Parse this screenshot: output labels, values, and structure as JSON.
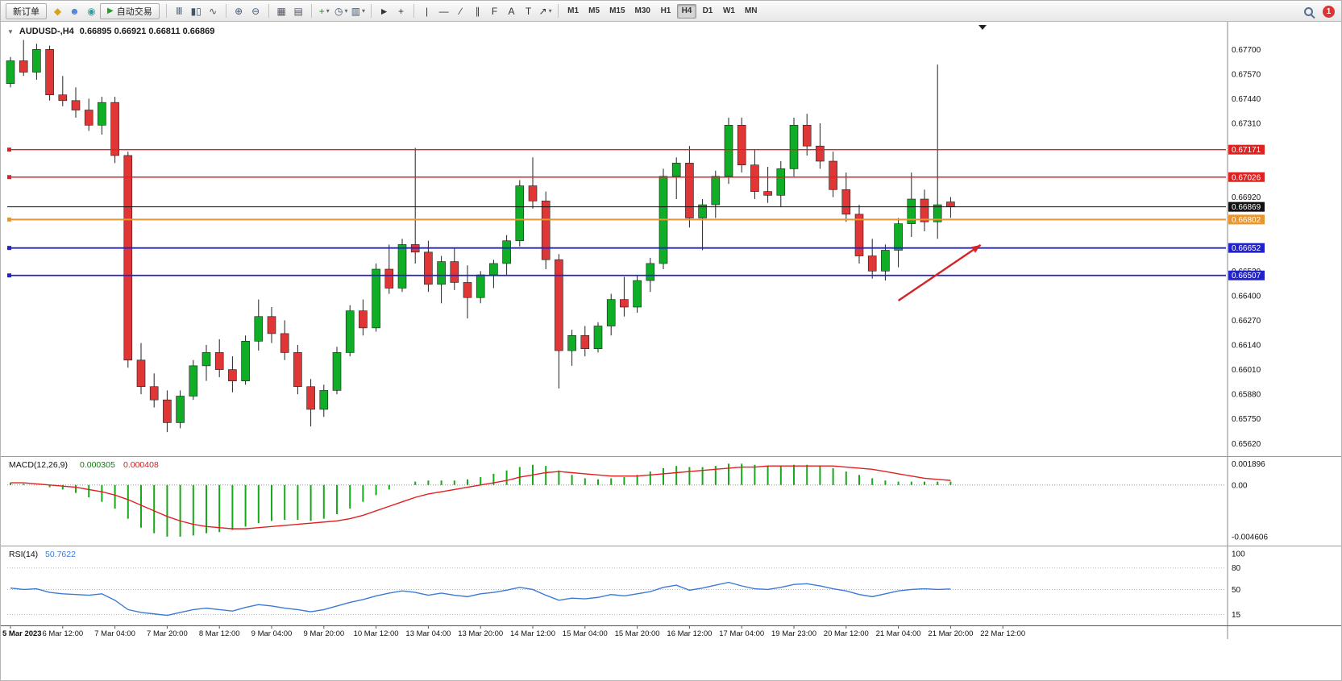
{
  "toolbar": {
    "new_order_label": "新订单",
    "auto_trading_label": "自动交易",
    "auto_play_glyph": "▶",
    "timeframes": [
      "M1",
      "M5",
      "M15",
      "M30",
      "H1",
      "H4",
      "D1",
      "W1",
      "MN"
    ],
    "active_timeframe": "H4",
    "notification_count": "1",
    "icons_left": [
      {
        "name": "mql-market-icon",
        "glyph": "◆",
        "color": "#d6a517"
      },
      {
        "name": "profile-icon",
        "glyph": "☻",
        "color": "#4a7fd4"
      },
      {
        "name": "community-icon",
        "glyph": "◉",
        "color": "#3a9e9e"
      }
    ],
    "icon_groups": [
      [
        {
          "name": "bars-chart-icon",
          "glyph": "Ⅲ",
          "color": "#445566"
        },
        {
          "name": "candles-chart-icon",
          "glyph": "▮▯",
          "color": "#445566"
        },
        {
          "name": "line-chart-icon",
          "glyph": "∿",
          "color": "#445566"
        }
      ],
      [
        {
          "name": "zoom-in-icon",
          "glyph": "⊕",
          "color": "#445577"
        },
        {
          "name": "zoom-out-icon",
          "glyph": "⊖",
          "color": "#445577"
        }
      ],
      [
        {
          "name": "tile-windows-icon",
          "glyph": "▦",
          "color": "#556"
        },
        {
          "name": "cascade-windows-icon",
          "glyph": "▤",
          "color": "#556"
        }
      ],
      [
        {
          "name": "indicators-button",
          "glyph": "+",
          "color": "#2a8a2a",
          "dropdown": true
        },
        {
          "name": "periods-button",
          "glyph": "◷",
          "color": "#445566",
          "dropdown": true
        },
        {
          "name": "templates-button",
          "glyph": "▥",
          "color": "#445566",
          "dropdown": true
        }
      ],
      [
        {
          "name": "cursor-icon",
          "glyph": "►",
          "color": "#333"
        },
        {
          "name": "crosshair-icon",
          "glyph": "+",
          "color": "#333"
        }
      ],
      [
        {
          "name": "vertical-line-icon",
          "glyph": "|",
          "color": "#333"
        },
        {
          "name": "horizontal-line-icon",
          "glyph": "—",
          "color": "#333"
        },
        {
          "name": "trendline-icon",
          "glyph": "∕",
          "color": "#333"
        },
        {
          "name": "channel-icon",
          "glyph": "∥",
          "color": "#333"
        },
        {
          "name": "fibonacci-icon",
          "glyph": "F",
          "color": "#333"
        },
        {
          "name": "text-tool-icon",
          "glyph": "A",
          "color": "#333"
        },
        {
          "name": "label-tool-icon",
          "glyph": "T",
          "color": "#333"
        },
        {
          "name": "arrows-tool-icon",
          "glyph": "↗",
          "color": "#333",
          "dropdown": true
        }
      ]
    ]
  },
  "chart_header": {
    "collapse_glyph": "▼",
    "symbol_title": "AUDUSD-,H4",
    "ohlc_values": "0.66895 0.66921 0.66811 0.66869"
  },
  "chart_data": [
    {
      "type": "candlestick",
      "symbol": "AUDUSD-",
      "timeframe": "H4",
      "ohlc_display": [
        "0.66895",
        "0.66921",
        "0.66811",
        "0.66869"
      ],
      "ylim": [
        0.65553,
        0.67846
      ],
      "up_color": "#0fae26",
      "down_color": "#e03636",
      "wick_color": "#222222",
      "price_ticks": [
        0.677,
        0.6757,
        0.6744,
        0.6731,
        0.6692,
        0.6653,
        0.664,
        0.6627,
        0.6614,
        0.6601,
        0.6588,
        0.6575,
        0.6562
      ],
      "levels": [
        {
          "price": 0.67171,
          "color": "#dd2222",
          "width": 1.4
        },
        {
          "price": 0.67026,
          "color": "#dd2222",
          "width": 1.4
        },
        {
          "price": 0.66802,
          "color": "#e8962d",
          "width": 2
        },
        {
          "price": 0.66652,
          "color": "#2222cc",
          "width": 1.8
        },
        {
          "price": 0.66507,
          "color": "#2222cc",
          "width": 1.8
        }
      ],
      "current_price": {
        "price": 0.66869,
        "color": "#111111"
      },
      "label_every": 4,
      "time_labels": [
        "5 Mar 2023",
        "6 Mar 12:00",
        "7 Mar 04:00",
        "7 Mar 20:00",
        "8 Mar 12:00",
        "9 Mar 04:00",
        "9 Mar 20:00",
        "10 Mar 12:00",
        "13 Mar 04:00",
        "13 Mar 20:00",
        "14 Mar 12:00",
        "15 Mar 04:00",
        "15 Mar 20:00",
        "16 Mar 12:00",
        "17 Mar 04:00",
        "19 Mar 23:00",
        "20 Mar 12:00",
        "21 Mar 04:00",
        "21 Mar 20:00",
        "22 Mar 12:00"
      ],
      "candles": [
        [
          0.6752,
          0.6766,
          0.675,
          0.6764
        ],
        [
          0.6764,
          0.6775,
          0.6756,
          0.6758
        ],
        [
          0.6758,
          0.6773,
          0.6754,
          0.677
        ],
        [
          0.677,
          0.6772,
          0.6743,
          0.6746
        ],
        [
          0.6746,
          0.6756,
          0.674,
          0.6743
        ],
        [
          0.6743,
          0.675,
          0.6734,
          0.6738
        ],
        [
          0.6738,
          0.6744,
          0.6727,
          0.673
        ],
        [
          0.673,
          0.6745,
          0.6725,
          0.6742
        ],
        [
          0.6742,
          0.6745,
          0.671,
          0.6714
        ],
        [
          0.6714,
          0.6716,
          0.6602,
          0.6606
        ],
        [
          0.6606,
          0.6615,
          0.6588,
          0.6592
        ],
        [
          0.6592,
          0.6599,
          0.6581,
          0.6585
        ],
        [
          0.6585,
          0.659,
          0.6568,
          0.6573
        ],
        [
          0.6573,
          0.659,
          0.657,
          0.6587
        ],
        [
          0.6587,
          0.6606,
          0.6585,
          0.6603
        ],
        [
          0.6603,
          0.6614,
          0.6595,
          0.661
        ],
        [
          0.661,
          0.6617,
          0.6597,
          0.6601
        ],
        [
          0.6601,
          0.6608,
          0.6589,
          0.6595
        ],
        [
          0.6595,
          0.6619,
          0.6593,
          0.6616
        ],
        [
          0.6616,
          0.6638,
          0.6611,
          0.6629
        ],
        [
          0.6629,
          0.6634,
          0.6615,
          0.662
        ],
        [
          0.662,
          0.6627,
          0.6606,
          0.661
        ],
        [
          0.661,
          0.6614,
          0.6588,
          0.6592
        ],
        [
          0.6592,
          0.6596,
          0.6571,
          0.658
        ],
        [
          0.658,
          0.6593,
          0.6576,
          0.659
        ],
        [
          0.659,
          0.6613,
          0.6588,
          0.661
        ],
        [
          0.661,
          0.6635,
          0.6608,
          0.6632
        ],
        [
          0.6632,
          0.6638,
          0.6619,
          0.6623
        ],
        [
          0.6623,
          0.6657,
          0.6621,
          0.6654
        ],
        [
          0.6654,
          0.6667,
          0.6641,
          0.6644
        ],
        [
          0.6644,
          0.667,
          0.6642,
          0.6667
        ],
        [
          0.6667,
          0.6718,
          0.6657,
          0.6663
        ],
        [
          0.6663,
          0.6669,
          0.6642,
          0.6646
        ],
        [
          0.6646,
          0.6661,
          0.6636,
          0.6658
        ],
        [
          0.6658,
          0.6665,
          0.6643,
          0.6647
        ],
        [
          0.6647,
          0.6656,
          0.6628,
          0.6639
        ],
        [
          0.6639,
          0.6653,
          0.6636,
          0.6651
        ],
        [
          0.6651,
          0.6659,
          0.6644,
          0.6657
        ],
        [
          0.6657,
          0.6672,
          0.6651,
          0.6669
        ],
        [
          0.6669,
          0.6701,
          0.6666,
          0.6698
        ],
        [
          0.6698,
          0.6713,
          0.6686,
          0.669
        ],
        [
          0.669,
          0.6695,
          0.6654,
          0.6659
        ],
        [
          0.6659,
          0.6662,
          0.6591,
          0.6611
        ],
        [
          0.6611,
          0.6622,
          0.6603,
          0.6619
        ],
        [
          0.6619,
          0.6624,
          0.6608,
          0.6612
        ],
        [
          0.6612,
          0.6626,
          0.661,
          0.6624
        ],
        [
          0.6624,
          0.6641,
          0.6619,
          0.6638
        ],
        [
          0.6638,
          0.665,
          0.6629,
          0.6634
        ],
        [
          0.6634,
          0.6651,
          0.6631,
          0.6648
        ],
        [
          0.6648,
          0.666,
          0.6642,
          0.6657
        ],
        [
          0.6657,
          0.6707,
          0.6654,
          0.6703
        ],
        [
          0.6703,
          0.6713,
          0.6691,
          0.671
        ],
        [
          0.671,
          0.6719,
          0.6676,
          0.6681
        ],
        [
          0.6681,
          0.6691,
          0.6664,
          0.6688
        ],
        [
          0.6688,
          0.6706,
          0.6681,
          0.6703
        ],
        [
          0.6703,
          0.6734,
          0.6699,
          0.673
        ],
        [
          0.673,
          0.6734,
          0.6705,
          0.6709
        ],
        [
          0.6709,
          0.6717,
          0.6691,
          0.6695
        ],
        [
          0.6695,
          0.6708,
          0.6689,
          0.6693
        ],
        [
          0.6693,
          0.6711,
          0.6687,
          0.6707
        ],
        [
          0.6707,
          0.6734,
          0.6703,
          0.673
        ],
        [
          0.673,
          0.6736,
          0.6714,
          0.6719
        ],
        [
          0.6719,
          0.6731,
          0.6707,
          0.6711
        ],
        [
          0.6711,
          0.6716,
          0.6692,
          0.6696
        ],
        [
          0.6696,
          0.6705,
          0.6679,
          0.6683
        ],
        [
          0.6683,
          0.6688,
          0.6657,
          0.6661
        ],
        [
          0.6661,
          0.667,
          0.6649,
          0.6653
        ],
        [
          0.6653,
          0.6667,
          0.6648,
          0.6664
        ],
        [
          0.6664,
          0.6681,
          0.6655,
          0.6678
        ],
        [
          0.6678,
          0.6705,
          0.6671,
          0.6691
        ],
        [
          0.6691,
          0.6696,
          0.6674,
          0.6679
        ],
        [
          0.6679,
          0.6762,
          0.667,
          0.6688
        ],
        [
          0.66895,
          0.66921,
          0.66811,
          0.66869
        ]
      ]
    },
    {
      "type": "bar",
      "title": "MACD(12,26,9)",
      "main_value": "0.000305",
      "signal_value": "0.000408",
      "ylim": [
        -0.0054,
        0.0025
      ],
      "hist_color": "#18a818",
      "signal_color": "#e02020",
      "axis_labels": [
        {
          "v": 0.001896,
          "label": "0.001896"
        },
        {
          "v": 0,
          "label": "0.00"
        },
        {
          "v": -0.004606,
          "label": "-0.004606"
        }
      ],
      "histogram": [
        0.0002,
        0.0001,
        0.0,
        -0.0002,
        -0.0004,
        -0.0007,
        -0.0011,
        -0.0015,
        -0.0021,
        -0.003,
        -0.0038,
        -0.0043,
        -0.0046,
        -0.0046,
        -0.0045,
        -0.0043,
        -0.0042,
        -0.004,
        -0.0037,
        -0.0034,
        -0.0032,
        -0.0031,
        -0.0031,
        -0.0032,
        -0.003,
        -0.0026,
        -0.0021,
        -0.0015,
        -0.0009,
        -0.0004,
        0.0,
        0.0003,
        0.0004,
        0.0004,
        0.0004,
        0.0005,
        0.0007,
        0.001,
        0.0013,
        0.0016,
        0.0018,
        0.0017,
        0.0013,
        0.0009,
        0.0006,
        0.0005,
        0.0006,
        0.0007,
        0.0009,
        0.0012,
        0.0015,
        0.0017,
        0.0016,
        0.0016,
        0.0017,
        0.0019,
        0.0019,
        0.0018,
        0.0017,
        0.0017,
        0.0018,
        0.0018,
        0.0017,
        0.0015,
        0.0012,
        0.0009,
        0.0006,
        0.0004,
        0.0003,
        0.0003,
        0.0003,
        0.0003,
        0.000305
      ],
      "signal": [
        0.0002,
        0.0002,
        0.0001,
        0.0,
        -0.0001,
        -0.0002,
        -0.0004,
        -0.0006,
        -0.0009,
        -0.0013,
        -0.0018,
        -0.0023,
        -0.0028,
        -0.0032,
        -0.0035,
        -0.0037,
        -0.0038,
        -0.0039,
        -0.0039,
        -0.0038,
        -0.0037,
        -0.0036,
        -0.0035,
        -0.0034,
        -0.0033,
        -0.0032,
        -0.003,
        -0.0027,
        -0.0023,
        -0.0019,
        -0.0015,
        -0.0011,
        -0.0008,
        -0.0006,
        -0.0004,
        -0.0002,
        0.0,
        0.0002,
        0.0004,
        0.0007,
        0.0009,
        0.0011,
        0.0012,
        0.0011,
        0.001,
        0.0009,
        0.0008,
        0.0008,
        0.0008,
        0.0009,
        0.001,
        0.0011,
        0.0012,
        0.0013,
        0.0014,
        0.0015,
        0.0016,
        0.0016,
        0.0017,
        0.0017,
        0.0017,
        0.0017,
        0.0017,
        0.0017,
        0.0016,
        0.0015,
        0.0014,
        0.0012,
        0.001,
        0.0008,
        0.0006,
        0.0005,
        0.000408
      ]
    },
    {
      "type": "line",
      "title": "RSI(14)",
      "value": "50.7622",
      "ylim": [
        0,
        110
      ],
      "line_color": "#3b7bd4",
      "levels": [
        80,
        50,
        15
      ],
      "axis_labels": [
        {
          "v": 100,
          "label": "100"
        },
        {
          "v": 80,
          "label": "80"
        },
        {
          "v": 50,
          "label": "50"
        },
        {
          "v": 15,
          "label": "15"
        }
      ],
      "values": [
        52,
        50,
        51,
        46,
        44,
        43,
        42,
        44,
        35,
        22,
        18,
        16,
        14,
        18,
        22,
        24,
        22,
        20,
        25,
        29,
        27,
        24,
        22,
        19,
        22,
        27,
        32,
        36,
        41,
        45,
        48,
        46,
        42,
        45,
        42,
        40,
        44,
        46,
        49,
        53,
        50,
        42,
        35,
        38,
        37,
        39,
        43,
        41,
        44,
        47,
        53,
        56,
        49,
        52,
        56,
        60,
        55,
        51,
        50,
        53,
        57,
        58,
        55,
        51,
        48,
        43,
        40,
        44,
        48,
        50,
        51,
        50,
        50.76
      ]
    }
  ],
  "annotations": {
    "trend_arrow": {
      "from": {
        "i": 68,
        "price": 0.66374
      },
      "to": {
        "i": 74.3,
        "price": 0.66668
      },
      "color": "#d42424"
    }
  }
}
